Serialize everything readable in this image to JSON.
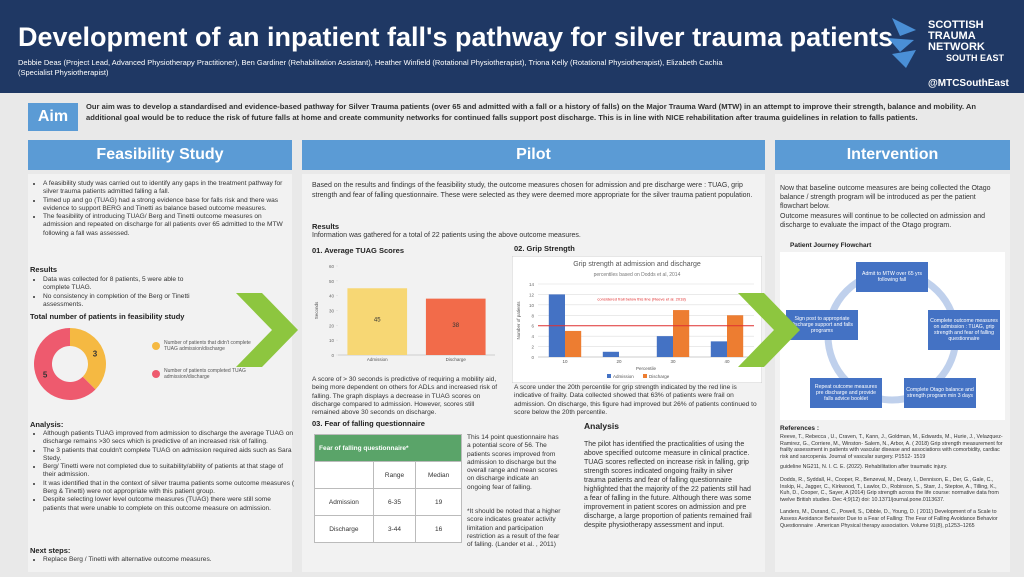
{
  "header": {
    "title": "Development of an inpatient fall's pathway for silver trauma patients",
    "authors": [
      "Debbie Deas (Project Lead, Advanced Physiotherapy Practitioner), Ben Gardiner (Rehabilitation Assistant), Heather Winfield (Rotational Physiotherapist),  Triona Kelly (Rotational Physiotherapist), Elizabeth Cachia",
      "(Specialist Physiotherapist)"
    ],
    "logo": [
      "SCOTTISH",
      "TRAUMA",
      "NETWORK",
      "SOUTH EAST"
    ],
    "twitter": "@MTCSouthEast"
  },
  "aim": {
    "label": "Aim",
    "text": "Our aim was to develop a standardised and evidence-based pathway for Silver Trauma patients (over 65 and admitted with a fall or a history of falls) on the Major Trauma Ward (MTW) in an attempt to improve their strength, balance and mobility. An additional goal would be to reduce the risk of future falls at home and create community networks for continued falls support post discharge. This is in line with NICE rehabilitation after trauma guidelines in relation to falls patients."
  },
  "feasibility": {
    "heading": "Feasibility Study",
    "bullets": [
      "A feasibility study was carried out to identify any gaps in the treatment pathway for silver trauma patients admitted falling a fall.",
      "Timed up and go (TUAG) had a strong evidence base for falls risk and there was evidence to support BERG and Tinetti as balance based outcome measures.",
      "The feasibility of introducing TUAG/ Berg and Tinetti outcome measures on admission and repeated on discharge for all patients over 65 admitted to the MTW following a fall was assessed."
    ],
    "results_heading": "Results",
    "results": [
      "Data was collected for 8 patients, 5 were able to complete TUAG.",
      "No consistency in completion of the Berg or Tinetti assessments."
    ],
    "analysis_heading": "Analysis:",
    "analysis": [
      "Although patients TUAG improved from admission to discharge the average TUAG on discharge remains >30 secs which is predictive of an increased risk of falling.",
      "The 3 patients that couldn't complete TUAG on admission  required aids such as Sara Stedy.",
      "Berg/ Tinetti were not completed due to suitability/ability of patients at that stage of their admission.",
      "It was identified that in the context of silver trauma patients some outcome measures ( Berg & Tinetti) were not appropriate with this patient group.",
      "Despite selecting lower level outcome measures (TUAG) there were still some patients that were unable to complete on this outcome measure on admission."
    ],
    "next_heading": "Next steps:",
    "next": [
      "Replace  Berg / Tinetti with alternative outcome measures."
    ]
  },
  "pilot": {
    "heading": "Pilot",
    "intro": "Based on the results and findings of the feasibility study, the outcome measures chosen for admission and pre discharge were : TUAG, grip strength and fear of falling questionnaire. These were selected as they were deemed more appropriate for the silver trauma patient population.",
    "results_heading": "Results",
    "results": "Information was gathered for a total of 22 patients using the above outcome measures.",
    "tuag_heading": "01. Average TUAG Scores",
    "grip_heading": "02. Grip Strength",
    "tuag_caption": "A score of > 30 seconds is predictive of requiring a mobility aid, being more dependent on others for ADLs and increased risk of falling. The graph displays a decrease in TUAG scores on discharge compared to admission. However, scores still remained above 30 seconds on discharge.",
    "grip_caption": "A score under the 20th percentile for grip strength indicated by the red line is  indicative of frailty. Data collected showed that 63% of patients were frail on admission. On discharge, this figure had improved but 26% of patients continued to score below the 20th percentile.",
    "fear_heading": "03. Fear of falling questionnaire",
    "table": {
      "title": "Fear of falling questionnaire*",
      "columns": [
        "Range",
        "Median"
      ],
      "rows": [
        [
          "Admission",
          "6-35",
          "19"
        ],
        [
          "Discharge",
          "3-44",
          "16"
        ]
      ]
    },
    "fear_text": "This 14 point questionnaire has a potential score of 56. The patients scores improved from admission to discharge but the overall range and mean scores on discharge indicate an ongoing fear of falling.",
    "fear_note": "*It should be noted that a higher score indicates greater activity limitation and participation restriction as a result of the fear of falling. (Lander et al. , 2011)",
    "analysis_heading": "Analysis",
    "analysis": "The pilot has identified the practicalities of using the above specified outcome measure in clinical practice. TUAG scores reflected on increase risk in falling, grip strength scores indicated ongoing frailty in silver trauma patients and fear of falling questionnaire highlighted that the majority of the 22 patients still had a fear of falling in the future. Although there was some improvement in patient scores on admission and pre discharge, a large proportion of patients remained frail despite physiotherapy assessment and input."
  },
  "intervention": {
    "heading": "Intervention",
    "text1": "Now that baseline outcome measures are being collected the Otago balance / strength program will be introduced as per the patient flowchart below.",
    "text2": "Outcome measures will continue to be collected on admission and discharge to evaluate the impact of the Otago program.",
    "flow_title": "Patient Journey Flowchart",
    "nodes": [
      "Admit to MTW over 65 yrs following fall",
      "Complete outcome measures on admission : TUAG, grip strength and fear of falling questionnaire",
      "Complete Otago balance and strength program min 3 days",
      "Repeat outcome measures pre discharge and provide falls advice booklet",
      "Sign post to appropriate discharge support and falls programs"
    ],
    "references_heading": "References :",
    "references": [
      "Reeve, T., Rebecca , U., Craven, T., Kann, J., Goldman, M., Edwards, M., Hurie, J., Velazquez-Ramirez, G., Corriere, M., Winston- Salem, N., Arbor, A. ( 2018) Grip strength measurement for frailty assessment in patients with vascular disease and associations with comorbidity, cardiac risk and sarcopenia. Journal of vascular surgery. P1512- 1519",
      "guideline NG211, N. I. C. E. (2022). Rehabilitation after traumatic injury.",
      "Dodds, R., Syddall, H., Cooper, R., Benzeval, M., Deary, I., Dennison, E., Der, G., Gale, C., Inskip, H., Jagger, C., Kirkwood, T., Lawlor, D., Robinson, S., Starr, J., Steptoe, A., Tilling, K., Kuh, D., Cooper, C., Sayer, A (2014) Grip strength across the life course: normative data from twelve British studies. Dec 4;9(12) doi: 10.1371/journal.pone.0113637.",
      "Landers, M., Durand, C., Powell, S., Dibble, D., Young, D. ( 2011) Development of a Scale to Assess Avoidance Behavior Due to a Fear of Falling: The Fear of Falling Avoidance Behavior Questionnaire . American Physical therapy association. Volume 91(8), p1253–1265"
    ]
  },
  "chart_data": [
    {
      "type": "pie",
      "hole": true,
      "title": "Total number of patients in feasibility study",
      "categories": [
        "Number of patients that didn't complete TUAG admission/discharge",
        "Number of patients completed TUAG admission/discharge"
      ],
      "values": [
        3,
        5
      ],
      "colors": [
        "#f5b942",
        "#ee5a6e"
      ]
    },
    {
      "type": "bar",
      "categories": [
        "Admission",
        "Discharge"
      ],
      "values": [
        45,
        38
      ],
      "colors": [
        "#f7d774",
        "#f26b4a"
      ],
      "ylabel": "Seconds",
      "ylim": [
        0,
        60
      ],
      "yticks": [
        0,
        10,
        20,
        30,
        40,
        50,
        60
      ]
    },
    {
      "type": "bar",
      "title": "Grip strength at admission and discharge",
      "subtitle": "percentiles based on Dodds et al, 2014",
      "xlabel": "Percentile",
      "ylabel": "Number of patients",
      "categories": [
        "10",
        "20",
        "30",
        "40"
      ],
      "series": [
        {
          "name": "Admission",
          "color": "#4472c4",
          "values": [
            12,
            1,
            4,
            3
          ]
        },
        {
          "name": "Discharge",
          "color": "#ed7d31",
          "values": [
            5,
            0,
            9,
            8
          ]
        }
      ],
      "ylim": [
        0,
        14
      ],
      "yticks": [
        0,
        2,
        4,
        6,
        8,
        10,
        12,
        14
      ],
      "grid": true,
      "reference_line": 6,
      "annotation": "considered frail below this line (Reeve et al. 2018)"
    }
  ]
}
